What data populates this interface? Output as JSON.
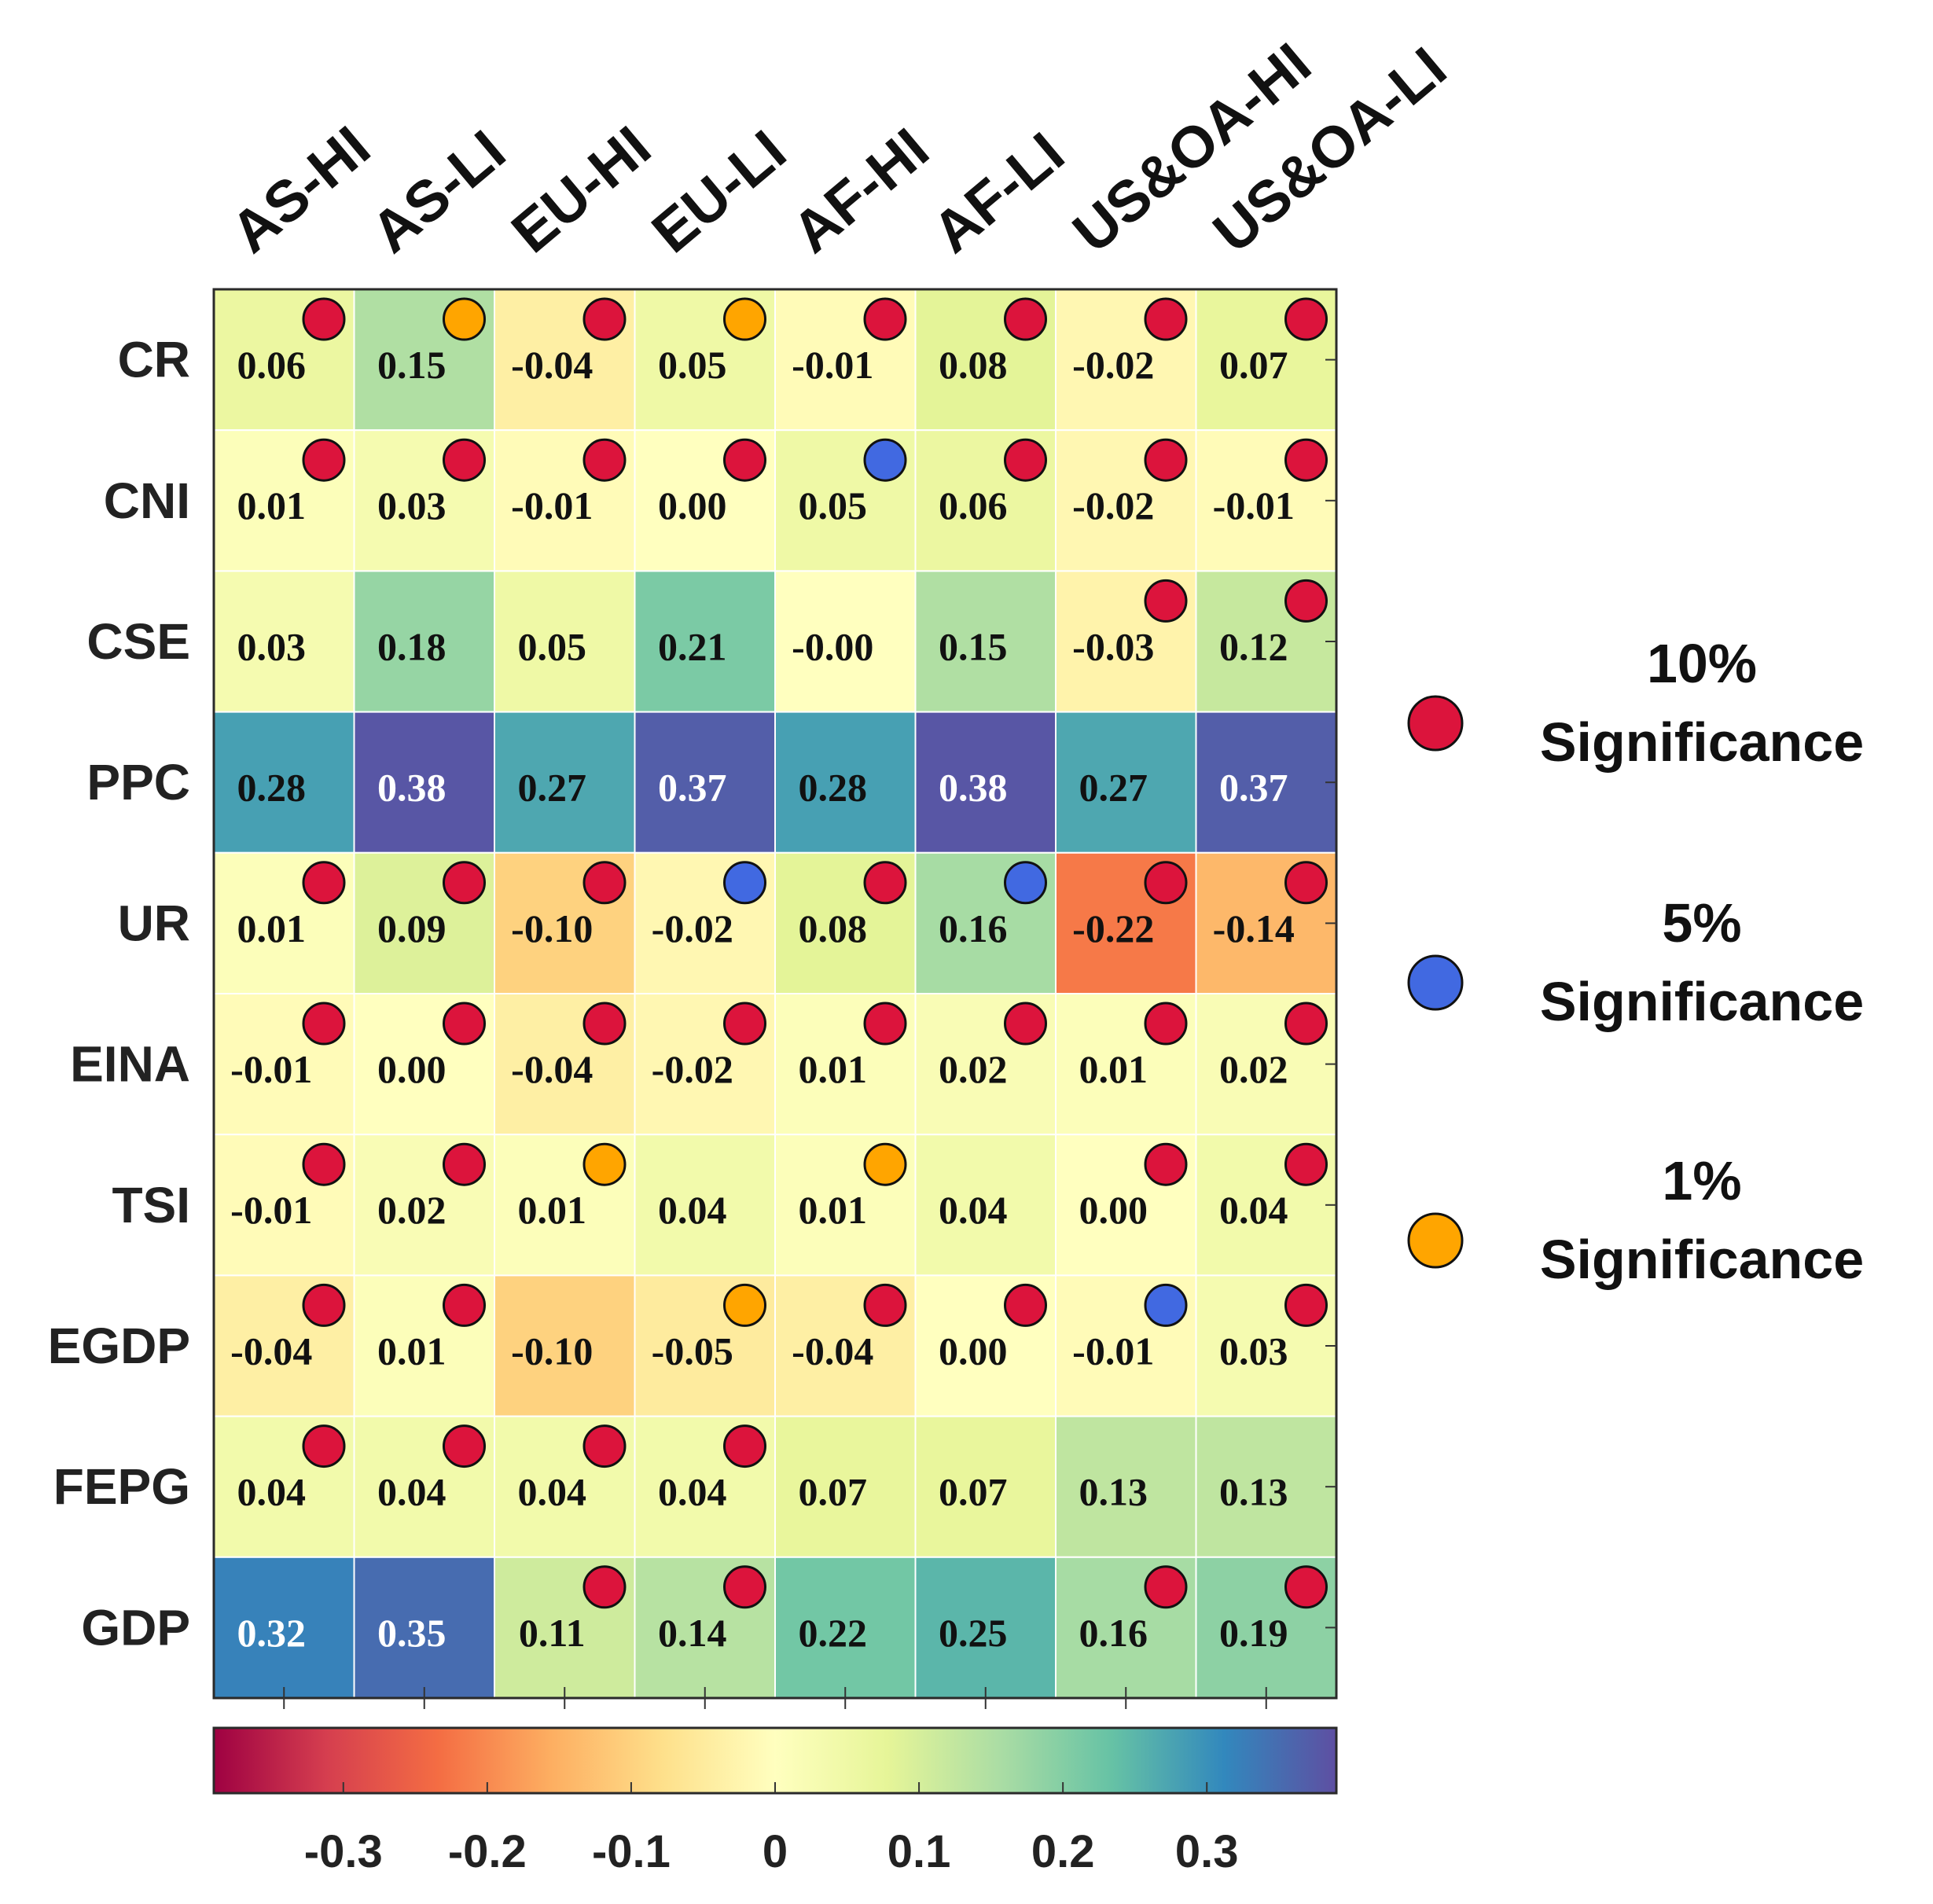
{
  "chart_data": {
    "type": "heatmap",
    "columns": [
      "AS-HI",
      "AS-LI",
      "EU-HI",
      "EU-LI",
      "AF-HI",
      "AF-LI",
      "US&OA-HI",
      "US&OA-LI"
    ],
    "rows": [
      "CR",
      "CNI",
      "CSE",
      "PPC",
      "UR",
      "EINA",
      "TSI",
      "EGDP",
      "FEPG",
      "GDP"
    ],
    "values": [
      [
        0.06,
        0.15,
        -0.04,
        0.05,
        -0.01,
        0.08,
        -0.02,
        0.07
      ],
      [
        0.01,
        0.03,
        -0.01,
        0.0,
        0.05,
        0.06,
        -0.02,
        -0.01
      ],
      [
        0.03,
        0.18,
        0.05,
        0.21,
        -0.0,
        0.15,
        -0.03,
        0.12
      ],
      [
        0.28,
        0.38,
        0.27,
        0.37,
        0.28,
        0.38,
        0.27,
        0.37
      ],
      [
        0.01,
        0.09,
        -0.1,
        -0.02,
        0.08,
        0.16,
        -0.22,
        -0.14
      ],
      [
        -0.01,
        0.0,
        -0.04,
        -0.02,
        0.01,
        0.02,
        0.01,
        0.02
      ],
      [
        -0.01,
        0.02,
        0.01,
        0.04,
        0.01,
        0.04,
        0.0,
        0.04
      ],
      [
        -0.04,
        0.01,
        -0.1,
        -0.05,
        -0.04,
        0.0,
        -0.01,
        0.03
      ],
      [
        0.04,
        0.04,
        0.04,
        0.04,
        0.07,
        0.07,
        0.13,
        0.13
      ],
      [
        0.32,
        0.35,
        0.11,
        0.14,
        0.22,
        0.25,
        0.16,
        0.19
      ]
    ],
    "labels": [
      [
        "0.06",
        "0.15",
        "-0.04",
        "0.05",
        "-0.01",
        "0.08",
        "-0.02",
        "0.07"
      ],
      [
        "0.01",
        "0.03",
        "-0.01",
        "0.00",
        "0.05",
        "0.06",
        "-0.02",
        "-0.01"
      ],
      [
        "0.03",
        "0.18",
        "0.05",
        "0.21",
        "-0.00",
        "0.15",
        "-0.03",
        "0.12"
      ],
      [
        "0.28",
        "0.38",
        "0.27",
        "0.37",
        "0.28",
        "0.38",
        "0.27",
        "0.37"
      ],
      [
        "0.01",
        "0.09",
        "-0.10",
        "-0.02",
        "0.08",
        "0.16",
        "-0.22",
        "-0.14"
      ],
      [
        "-0.01",
        "0.00",
        "-0.04",
        "-0.02",
        "0.01",
        "0.02",
        "0.01",
        "0.02"
      ],
      [
        "-0.01",
        "0.02",
        "0.01",
        "0.04",
        "0.01",
        "0.04",
        "0.00",
        "0.04"
      ],
      [
        "-0.04",
        "0.01",
        "-0.10",
        "-0.05",
        "-0.04",
        "0.00",
        "-0.01",
        "0.03"
      ],
      [
        "0.04",
        "0.04",
        "0.04",
        "0.04",
        "0.07",
        "0.07",
        "0.13",
        "0.13"
      ],
      [
        "0.32",
        "0.35",
        "0.11",
        "0.14",
        "0.22",
        "0.25",
        "0.16",
        "0.19"
      ]
    ],
    "significance": [
      [
        "10",
        "1",
        "10",
        "1",
        "10",
        "10",
        "10",
        "10"
      ],
      [
        "10",
        "10",
        "10",
        "10",
        "5",
        "10",
        "10",
        "10"
      ],
      [
        "",
        "",
        "",
        "",
        "",
        "",
        "10",
        "10"
      ],
      [
        "",
        "",
        "",
        "",
        "",
        "",
        "",
        ""
      ],
      [
        "10",
        "10",
        "10",
        "5",
        "10",
        "5",
        "10",
        "10"
      ],
      [
        "10",
        "10",
        "10",
        "10",
        "10",
        "10",
        "10",
        "10"
      ],
      [
        "10",
        "10",
        "1",
        "",
        "1",
        "",
        "10",
        "10"
      ],
      [
        "10",
        "10",
        "",
        "1",
        "10",
        "10",
        "5",
        "10"
      ],
      [
        "10",
        "10",
        "10",
        "10",
        "",
        "",
        "",
        ""
      ],
      [
        "",
        "",
        "10",
        "10",
        "",
        "",
        "10",
        "10"
      ]
    ],
    "colorbar": {
      "range": [
        -0.39,
        0.39
      ],
      "ticks": [
        -0.3,
        -0.2,
        -0.1,
        0,
        0.1,
        0.2,
        0.3
      ],
      "tick_labels": [
        "-0.3",
        "-0.2",
        "-0.1",
        "0",
        "0.1",
        "0.2",
        "0.3"
      ],
      "colormap": "Spectral",
      "stops": [
        "#9e0142",
        "#d53e4f",
        "#f46d43",
        "#fdae61",
        "#fee08b",
        "#ffffbf",
        "#e6f598",
        "#abdda4",
        "#66c2a5",
        "#3288bd",
        "#5e4fa2"
      ]
    },
    "legend": {
      "position": "right",
      "items": [
        {
          "key": "10",
          "line1": "10%",
          "line2": "Significance",
          "color": "#dc143c"
        },
        {
          "key": "5",
          "line1": "5%",
          "line2": "Significance",
          "color": "#4169e1"
        },
        {
          "key": "1",
          "line1": "1%",
          "line2": "Significance",
          "color": "#ffa500"
        }
      ]
    }
  }
}
